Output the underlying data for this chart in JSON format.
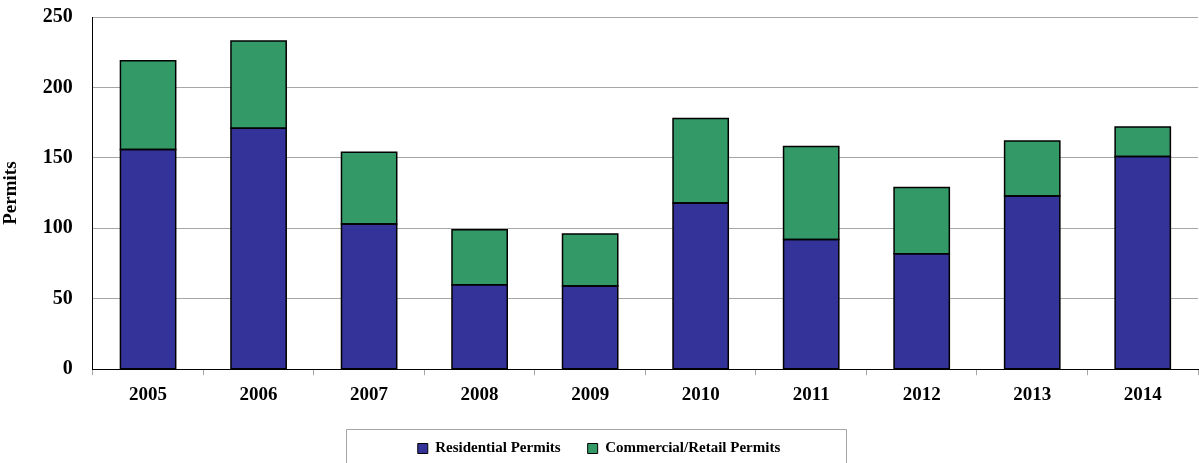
{
  "chart_data": {
    "type": "bar",
    "stacked": true,
    "ylabel": "Permits",
    "categories": [
      "2005",
      "2006",
      "2007",
      "2008",
      "2009",
      "2010",
      "2011",
      "2012",
      "2013",
      "2014"
    ],
    "series": [
      {
        "name": "Residential Permits",
        "color": "#333399",
        "values": [
          156,
          171,
          103,
          60,
          59,
          118,
          92,
          82,
          123,
          151
        ]
      },
      {
        "name": "Commercial/Retail Permits",
        "color": "#339966",
        "values": [
          63,
          62,
          51,
          39,
          37,
          60,
          66,
          47,
          39,
          21
        ]
      }
    ],
    "ylim": [
      0,
      250
    ],
    "yticks": [
      0,
      50,
      100,
      150,
      200,
      250
    ],
    "grid": "y",
    "legend": "bottom"
  }
}
